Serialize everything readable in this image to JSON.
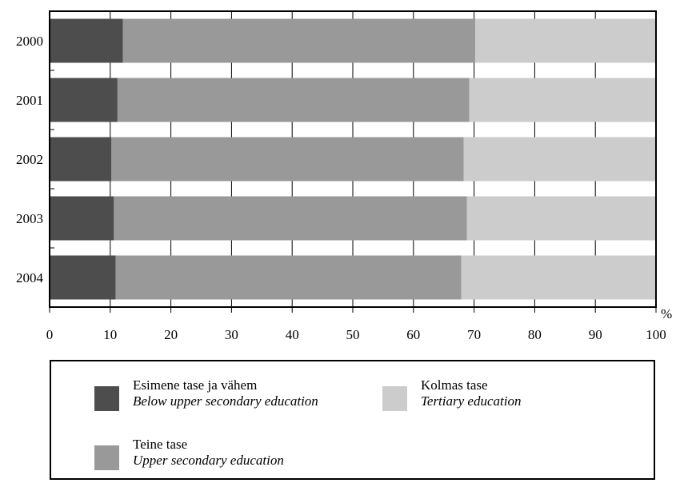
{
  "chart_data": {
    "type": "bar",
    "orientation": "horizontal",
    "stacked": true,
    "categories": [
      "2000",
      "2001",
      "2002",
      "2003",
      "2004"
    ],
    "series": [
      {
        "name_et": "Esimene tase ja vähem",
        "name": "Below upper secondary education",
        "color": "#4d4d4d",
        "values": [
          12.1,
          11.2,
          10.2,
          10.6,
          10.9
        ]
      },
      {
        "name_et": "Teine tase",
        "name": "Upper secondary education",
        "color": "#999999",
        "values": [
          58.1,
          58.0,
          58.1,
          58.2,
          57.0
        ]
      },
      {
        "name_et": "Kolmas tase",
        "name": "Tertiary education",
        "color": "#cccccc",
        "values": [
          29.8,
          30.8,
          31.7,
          31.2,
          32.1
        ]
      }
    ],
    "x_ticks": [
      "0",
      "10",
      "20",
      "30",
      "40",
      "50",
      "60",
      "70",
      "80",
      "90",
      "100"
    ],
    "xlim": [
      0,
      100
    ],
    "x_unit": "%",
    "grid": "vertical",
    "legend_placement": "bottom"
  },
  "legend": {
    "item1_et": "Esimene tase ja vähem",
    "item1_en": "Below upper secondary education",
    "item2_et": "Teine tase",
    "item2_en": "Upper secondary education",
    "item3_et": "Kolmas tase",
    "item3_en": "Tertiary education"
  }
}
